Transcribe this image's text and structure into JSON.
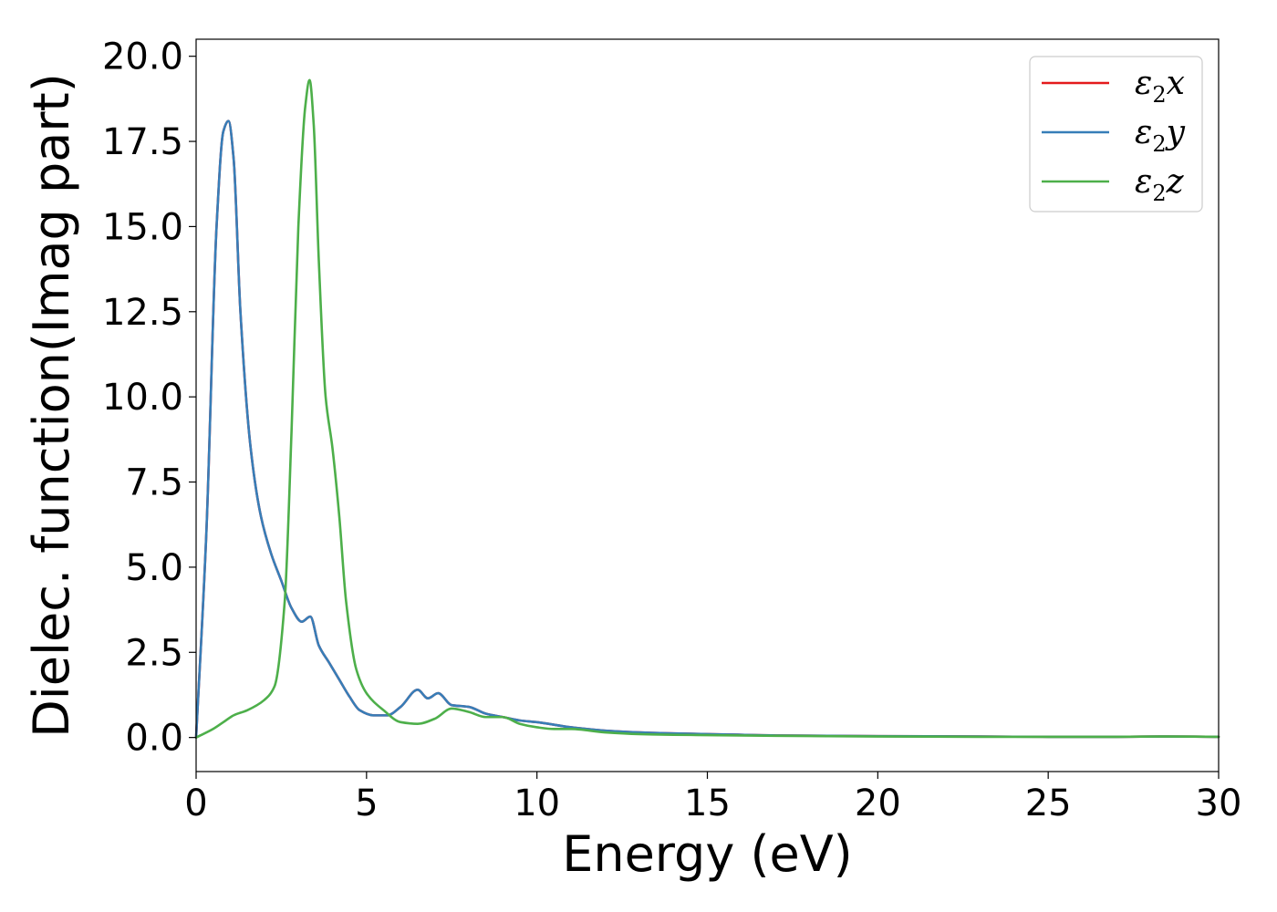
{
  "chart_data": {
    "type": "line",
    "xlabel": "Energy (eV)",
    "ylabel": "Dielec. function(Imag part)",
    "xlim": [
      0,
      30
    ],
    "ylim": [
      -1,
      20.5
    ],
    "xticks": [
      0,
      5,
      10,
      15,
      20,
      25,
      30
    ],
    "xtick_labels": [
      "0",
      "5",
      "10",
      "15",
      "20",
      "25",
      "30"
    ],
    "yticks": [
      0,
      2.5,
      5,
      7.5,
      10,
      12.5,
      15,
      17.5,
      20
    ],
    "ytick_labels": [
      "0.0",
      "2.5",
      "5.0",
      "7.5",
      "10.0",
      "12.5",
      "15.0",
      "17.5",
      "20.0"
    ],
    "grid": false,
    "legend_position": "top-right",
    "series": [
      {
        "name": "ε2x",
        "legend_base": "ε",
        "legend_sub": "2",
        "legend_var": "x",
        "color": "#e41a1c",
        "x": [
          0,
          0.3,
          0.6,
          0.8,
          0.95,
          1.1,
          1.3,
          1.6,
          1.9,
          2.2,
          2.5,
          2.8,
          3.1,
          3.35,
          3.6,
          3.9,
          4.2,
          4.5,
          4.8,
          5.2,
          5.6,
          6.0,
          6.5,
          6.8,
          7.1,
          7.5,
          8.0,
          8.5,
          9.0,
          9.5,
          10.0,
          11.0,
          12.0,
          13.0,
          14.0,
          15.0,
          17.0,
          20.0,
          23.0,
          25.0,
          27.0,
          28.5,
          30.0
        ],
        "y": [
          0,
          6.0,
          15.0,
          17.8,
          18.1,
          17.0,
          12.5,
          8.5,
          6.5,
          5.4,
          4.6,
          3.8,
          3.4,
          3.55,
          2.7,
          2.2,
          1.7,
          1.2,
          0.8,
          0.65,
          0.65,
          0.9,
          1.4,
          1.15,
          1.3,
          0.95,
          0.9,
          0.7,
          0.6,
          0.5,
          0.45,
          0.3,
          0.2,
          0.15,
          0.12,
          0.1,
          0.06,
          0.04,
          0.03,
          0.02,
          0.02,
          0.03,
          0.02
        ]
      },
      {
        "name": "ε2y",
        "legend_base": "ε",
        "legend_sub": "2",
        "legend_var": "y",
        "color": "#377eb8",
        "x": [
          0,
          0.3,
          0.6,
          0.8,
          0.95,
          1.1,
          1.3,
          1.6,
          1.9,
          2.2,
          2.5,
          2.8,
          3.1,
          3.35,
          3.6,
          3.9,
          4.2,
          4.5,
          4.8,
          5.2,
          5.6,
          6.0,
          6.5,
          6.8,
          7.1,
          7.5,
          8.0,
          8.5,
          9.0,
          9.5,
          10.0,
          11.0,
          12.0,
          13.0,
          14.0,
          15.0,
          17.0,
          20.0,
          23.0,
          25.0,
          27.0,
          28.5,
          30.0
        ],
        "y": [
          0,
          6.0,
          15.0,
          17.8,
          18.1,
          17.0,
          12.5,
          8.5,
          6.5,
          5.4,
          4.6,
          3.8,
          3.4,
          3.55,
          2.7,
          2.2,
          1.7,
          1.2,
          0.8,
          0.65,
          0.65,
          0.9,
          1.4,
          1.15,
          1.3,
          0.95,
          0.9,
          0.7,
          0.6,
          0.5,
          0.45,
          0.3,
          0.2,
          0.15,
          0.12,
          0.1,
          0.06,
          0.04,
          0.03,
          0.02,
          0.02,
          0.03,
          0.02
        ]
      },
      {
        "name": "ε2z",
        "legend_base": "ε",
        "legend_sub": "2",
        "legend_var": "z",
        "color": "#4daf4a",
        "x": [
          0,
          0.5,
          0.8,
          1.1,
          1.5,
          2.0,
          2.3,
          2.6,
          2.8,
          3.0,
          3.2,
          3.33,
          3.45,
          3.6,
          3.8,
          4.0,
          4.2,
          4.4,
          4.7,
          5.0,
          5.5,
          6.0,
          6.5,
          7.0,
          7.5,
          8.0,
          8.5,
          9.0,
          9.5,
          10.0,
          10.5,
          11.0,
          12.0,
          13.0,
          14.0,
          15.0,
          17.0,
          20.0,
          23.0,
          25.0,
          27.0,
          28.5,
          30.0
        ],
        "y": [
          0,
          0.25,
          0.45,
          0.65,
          0.8,
          1.1,
          1.5,
          4.0,
          9.0,
          15.0,
          18.5,
          19.3,
          18.0,
          14.0,
          10.0,
          8.5,
          6.5,
          4.0,
          2.0,
          1.3,
          0.8,
          0.45,
          0.4,
          0.55,
          0.85,
          0.75,
          0.6,
          0.6,
          0.4,
          0.3,
          0.25,
          0.25,
          0.15,
          0.1,
          0.08,
          0.07,
          0.05,
          0.03,
          0.02,
          0.02,
          0.02,
          0.03,
          0.02
        ]
      }
    ]
  }
}
